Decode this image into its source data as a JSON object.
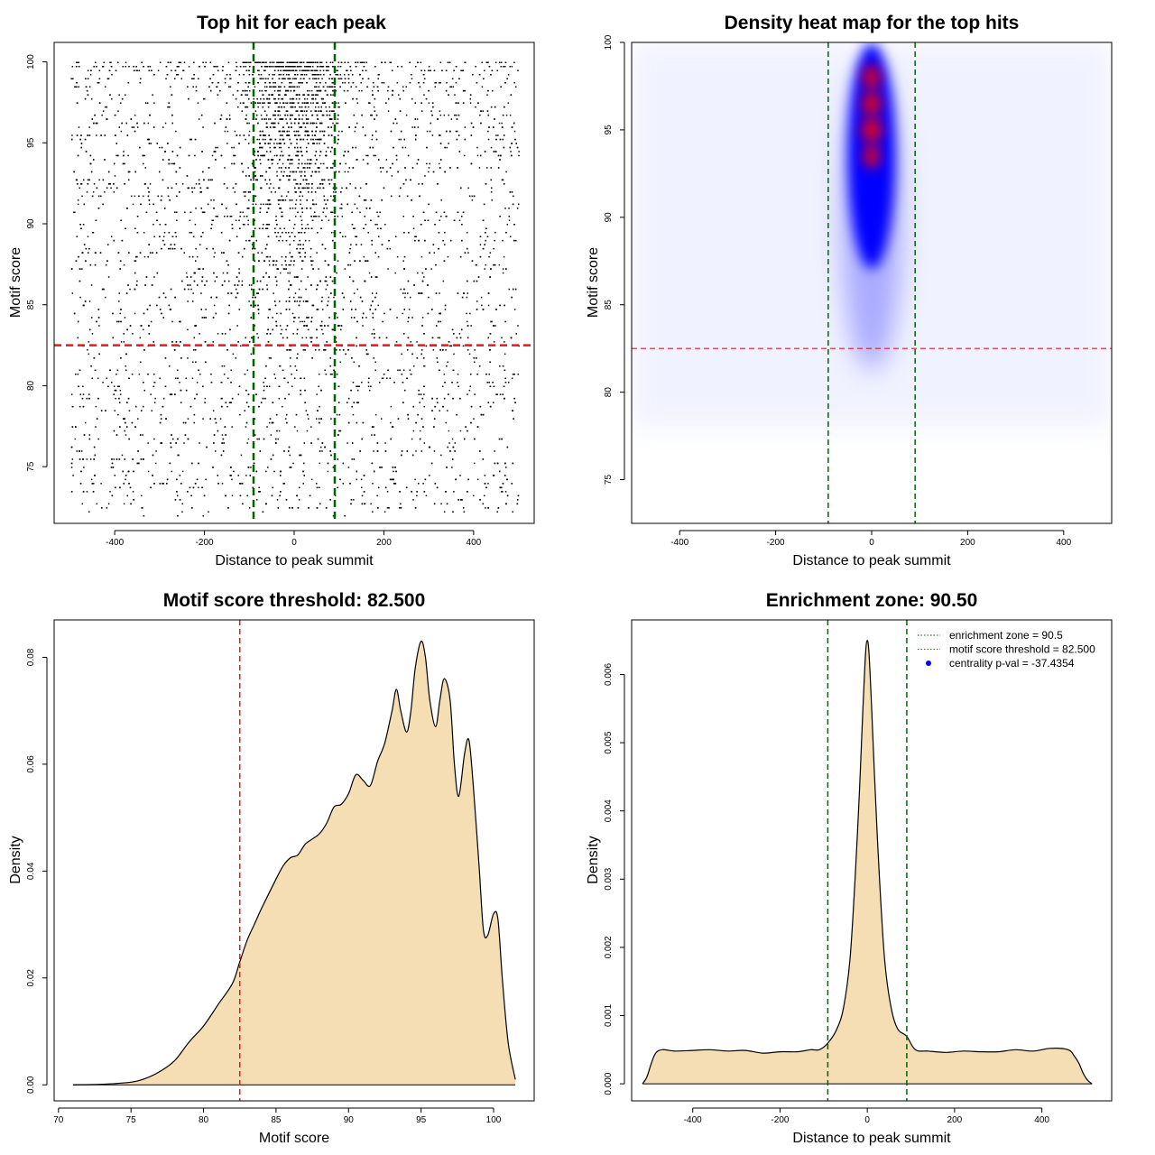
{
  "colors": {
    "green": "#006400",
    "red": "#e31a1c",
    "fill": "#f5deb3",
    "scatter_point": "#000000",
    "heat_low": "#ffffff",
    "heat_mid": "#0000ff",
    "heat_high": "#ff0000"
  },
  "chart_data": [
    {
      "type": "scatter",
      "title": "Top hit for each peak",
      "xlabel": "Distance to peak summit",
      "ylabel": "Motif score",
      "xlim": [
        -535,
        535
      ],
      "ylim": [
        71.5,
        101.2
      ],
      "xticks": [
        -400,
        -200,
        0,
        200,
        400
      ],
      "yticks": [
        75,
        80,
        85,
        90,
        95,
        100
      ],
      "vlines": [
        -90.5,
        90.5
      ],
      "hlines": [
        82.5
      ],
      "description_of_points": "one point per peak: x = distance of top motif hit to summit (-500..500), y = motif score (about 72..100); dense near x=0 and above score 82.5",
      "points_summary": {
        "x_range": [
          -500,
          500
        ],
        "y_range": [
          72,
          100
        ],
        "center_sd": 60
      }
    },
    {
      "type": "heatmap",
      "title": "Density heat map for the top hits",
      "xlabel": "Distance to peak summit",
      "ylabel": "Motif score",
      "xlim": [
        -500,
        500
      ],
      "ylim": [
        72.5,
        100
      ],
      "xticks": [
        -400,
        -200,
        0,
        200,
        400
      ],
      "yticks": [
        75,
        80,
        85,
        90,
        95,
        100
      ],
      "vlines": [
        -90.5,
        90.5
      ],
      "hlines": [
        82.5
      ],
      "hotspot": {
        "x": 0,
        "y": 95.5
      }
    },
    {
      "type": "area",
      "title": "Motif score threshold: 82.500",
      "xlabel": "Motif score",
      "ylabel": "Density",
      "xlim": [
        69.7,
        102.8
      ],
      "ylim": [
        -0.003,
        0.087
      ],
      "xticks": [
        70,
        75,
        80,
        85,
        90,
        95,
        100
      ],
      "yticks": [
        0.0,
        0.02,
        0.04,
        0.06,
        0.08
      ],
      "ytick_labels": [
        "0.00",
        "0.02",
        "0.04",
        "0.06",
        "0.08"
      ],
      "vlines": [
        82.5
      ],
      "x": [
        71,
        73,
        75,
        76,
        77,
        78,
        79,
        80,
        81,
        82,
        82.5,
        83,
        83.5,
        84,
        85,
        85.5,
        86,
        86.5,
        87,
        87.5,
        88,
        88.5,
        89,
        89.5,
        90,
        90.5,
        91,
        91.5,
        92,
        92.5,
        93,
        93.3,
        93.6,
        94,
        94.3,
        94.6,
        95,
        95.3,
        95.6,
        96,
        96.3,
        96.6,
        97,
        97.3,
        97.6,
        98,
        98.3,
        98.6,
        99,
        99.3,
        99.6,
        100,
        100.3,
        100.6,
        101,
        101.5
      ],
      "y": [
        0.0,
        0.0001,
        0.0005,
        0.0012,
        0.0025,
        0.0045,
        0.008,
        0.011,
        0.015,
        0.019,
        0.023,
        0.027,
        0.03,
        0.033,
        0.0385,
        0.041,
        0.0425,
        0.043,
        0.045,
        0.046,
        0.047,
        0.049,
        0.052,
        0.0525,
        0.0545,
        0.058,
        0.057,
        0.056,
        0.0605,
        0.064,
        0.07,
        0.074,
        0.07,
        0.066,
        0.07,
        0.078,
        0.083,
        0.08,
        0.072,
        0.067,
        0.072,
        0.076,
        0.072,
        0.06,
        0.054,
        0.062,
        0.0645,
        0.056,
        0.041,
        0.029,
        0.028,
        0.032,
        0.031,
        0.02,
        0.008,
        0.001
      ]
    },
    {
      "type": "area",
      "title": "Enrichment zone: 90.50",
      "xlabel": "Distance to peak summit",
      "ylabel": "Density",
      "xlim": [
        -540,
        560
      ],
      "ylim": [
        -0.00025,
        0.0068
      ],
      "xticks": [
        -400,
        -200,
        0,
        200,
        400
      ],
      "yticks": [
        0.0,
        0.001,
        0.002,
        0.003,
        0.004,
        0.005,
        0.006
      ],
      "ytick_labels": [
        "0.000",
        "0.001",
        "0.002",
        "0.003",
        "0.004",
        "0.005",
        "0.006"
      ],
      "vlines": [
        -90.5,
        90.5
      ],
      "x": [
        -515,
        -505,
        -495,
        -485,
        -470,
        -440,
        -400,
        -360,
        -320,
        -280,
        -240,
        -200,
        -160,
        -130,
        -110,
        -90,
        -70,
        -55,
        -40,
        -28,
        -18,
        -10,
        -4,
        0,
        4,
        10,
        18,
        28,
        40,
        55,
        70,
        90,
        110,
        140,
        180,
        220,
        260,
        300,
        340,
        380,
        420,
        460,
        475,
        485,
        495,
        505,
        515
      ],
      "y": [
        0.0,
        0.0001,
        0.0003,
        0.00045,
        0.0005,
        0.00048,
        0.00049,
        0.0005,
        0.00048,
        0.00049,
        0.00045,
        0.00047,
        0.00047,
        0.0005,
        0.0005,
        0.0006,
        0.0008,
        0.0011,
        0.0018,
        0.003,
        0.0043,
        0.0055,
        0.0063,
        0.0065,
        0.0063,
        0.0055,
        0.0043,
        0.003,
        0.0018,
        0.0011,
        0.0008,
        0.0007,
        0.0005,
        0.00048,
        0.00046,
        0.00048,
        0.00047,
        0.00047,
        0.0005,
        0.00048,
        0.00052,
        0.0005,
        0.0004,
        0.0003,
        0.00015,
        5e-05,
        0.0
      ],
      "legend": [
        {
          "label": "enrichment zone = 90.5",
          "color": "#006400",
          "style": "dotted"
        },
        {
          "label": "motif score threshold = 82.500",
          "color": "#e31a1c",
          "style": "dotted"
        },
        {
          "label": "centrality p-val = -37.4354",
          "color": "#0000ff",
          "style": "point"
        }
      ],
      "legend_position": "top-right"
    }
  ]
}
